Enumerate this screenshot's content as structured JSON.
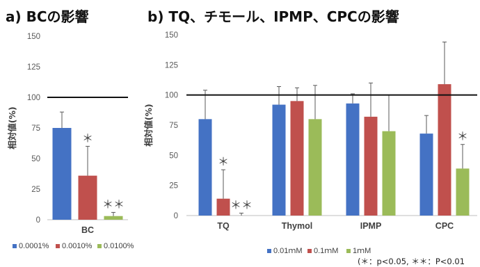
{
  "figure": {
    "footnote": "(＊：p<0.05, ＊＊：P<0.01"
  },
  "chart_data": [
    {
      "type": "bar",
      "title": "a) BCの影響",
      "ylabel": "相対値(%)",
      "xlabel": "",
      "ylim": [
        0,
        150
      ],
      "yticks": [
        0,
        25,
        50,
        75,
        100,
        125,
        150
      ],
      "grid": false,
      "reference_line": 100,
      "categories": [
        "BC"
      ],
      "series": [
        {
          "name": "0.0001%",
          "color": "#4472C4",
          "values": [
            75
          ],
          "error": [
            13
          ],
          "sig": [
            ""
          ]
        },
        {
          "name": "0.0010%",
          "color": "#C0504D",
          "values": [
            36
          ],
          "error": [
            24
          ],
          "sig": [
            "＊"
          ]
        },
        {
          "name": "0.0100%",
          "color": "#9BBB59",
          "values": [
            3
          ],
          "error": [
            3
          ],
          "sig": [
            "＊＊"
          ]
        }
      ],
      "legend": "bottom"
    },
    {
      "type": "bar",
      "title": "b) TQ、チモール、IPMP、CPCの影響",
      "ylabel": "相対値(%)",
      "xlabel": "",
      "ylim": [
        0,
        150
      ],
      "yticks": [
        0,
        25,
        50,
        75,
        100,
        125,
        150
      ],
      "grid": false,
      "reference_line": 100,
      "categories": [
        "TQ",
        "Thymol",
        "IPMP",
        "CPC"
      ],
      "series": [
        {
          "name": "0.01ｍM",
          "color": "#4472C4",
          "values": [
            80,
            92,
            93,
            68
          ],
          "error": [
            24,
            15,
            8,
            15
          ],
          "sig": [
            "",
            "",
            "",
            ""
          ]
        },
        {
          "name": "0.1ｍM",
          "color": "#C0504D",
          "values": [
            14,
            95,
            82,
            109
          ],
          "error": [
            24,
            11,
            28,
            35
          ],
          "sig": [
            "＊",
            "",
            "",
            ""
          ]
        },
        {
          "name": "1ｍM",
          "color": "#9BBB59",
          "values": [
            0,
            80,
            70,
            39
          ],
          "error": [
            2,
            28,
            30,
            20
          ],
          "sig": [
            "＊＊",
            "",
            "",
            "＊"
          ]
        }
      ],
      "legend": "bottom"
    }
  ]
}
